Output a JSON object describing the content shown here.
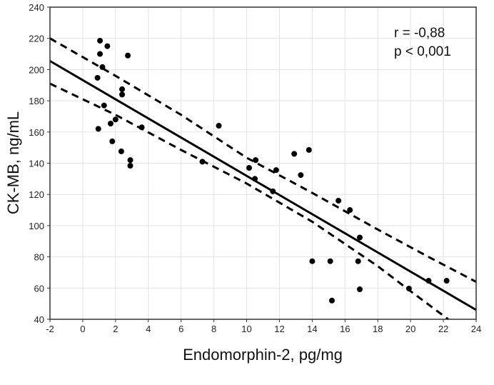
{
  "chart_data": {
    "type": "scatter",
    "title": "",
    "xlabel": "Endomorphin-2, pg/mg",
    "ylabel": "CK-MB, ng/mL",
    "xlim": [
      -2,
      24
    ],
    "ylim": [
      40,
      240
    ],
    "xticks": [
      -2,
      0,
      2,
      4,
      6,
      8,
      10,
      12,
      14,
      16,
      18,
      20,
      22,
      24
    ],
    "yticks": [
      40,
      60,
      80,
      100,
      120,
      140,
      160,
      180,
      200,
      220,
      240
    ],
    "grid": true,
    "annotations": [
      "r = -0,88",
      "p < 0,001"
    ],
    "points": [
      [
        1.05,
        218.5
      ],
      [
        1.5,
        215
      ],
      [
        1.05,
        210
      ],
      [
        2.75,
        209
      ],
      [
        1.2,
        201.6
      ],
      [
        0.9,
        194.7
      ],
      [
        2.4,
        187.4
      ],
      [
        2.4,
        184
      ],
      [
        1.3,
        177
      ],
      [
        2.0,
        168
      ],
      [
        0.95,
        162
      ],
      [
        1.7,
        165.4
      ],
      [
        3.6,
        163
      ],
      [
        1.8,
        154
      ],
      [
        2.35,
        147.6
      ],
      [
        2.9,
        142
      ],
      [
        2.9,
        138.4
      ],
      [
        7.3,
        141
      ],
      [
        8.3,
        164
      ],
      [
        10.15,
        137
      ],
      [
        10.55,
        142
      ],
      [
        10.5,
        130
      ],
      [
        11.8,
        135.6
      ],
      [
        11.6,
        122
      ],
      [
        12.9,
        146
      ],
      [
        13.3,
        132.4
      ],
      [
        13.8,
        148.5
      ],
      [
        15.6,
        116
      ],
      [
        16.3,
        110
      ],
      [
        16.9,
        92.4
      ],
      [
        14.0,
        77.2
      ],
      [
        15.1,
        77.2
      ],
      [
        16.8,
        77.2
      ],
      [
        16.9,
        59.2
      ],
      [
        15.2,
        52
      ],
      [
        19.9,
        59.7
      ],
      [
        21.1,
        64.7
      ],
      [
        22.2,
        64.7
      ]
    ],
    "regression_line": [
      [
        -2,
        205.5
      ],
      [
        24,
        46
      ]
    ],
    "ci_upper": [
      [
        -2,
        220
      ],
      [
        2,
        196
      ],
      [
        6,
        171
      ],
      [
        10,
        143.5
      ],
      [
        14,
        121
      ],
      [
        18,
        97.5
      ],
      [
        21,
        80.5
      ],
      [
        24,
        64
      ]
    ],
    "ci_lower": [
      [
        -2,
        191
      ],
      [
        2,
        171
      ],
      [
        6,
        148.5
      ],
      [
        10,
        127
      ],
      [
        14,
        102.5
      ],
      [
        18,
        74
      ],
      [
        20,
        58
      ],
      [
        22.3,
        40
      ]
    ]
  }
}
